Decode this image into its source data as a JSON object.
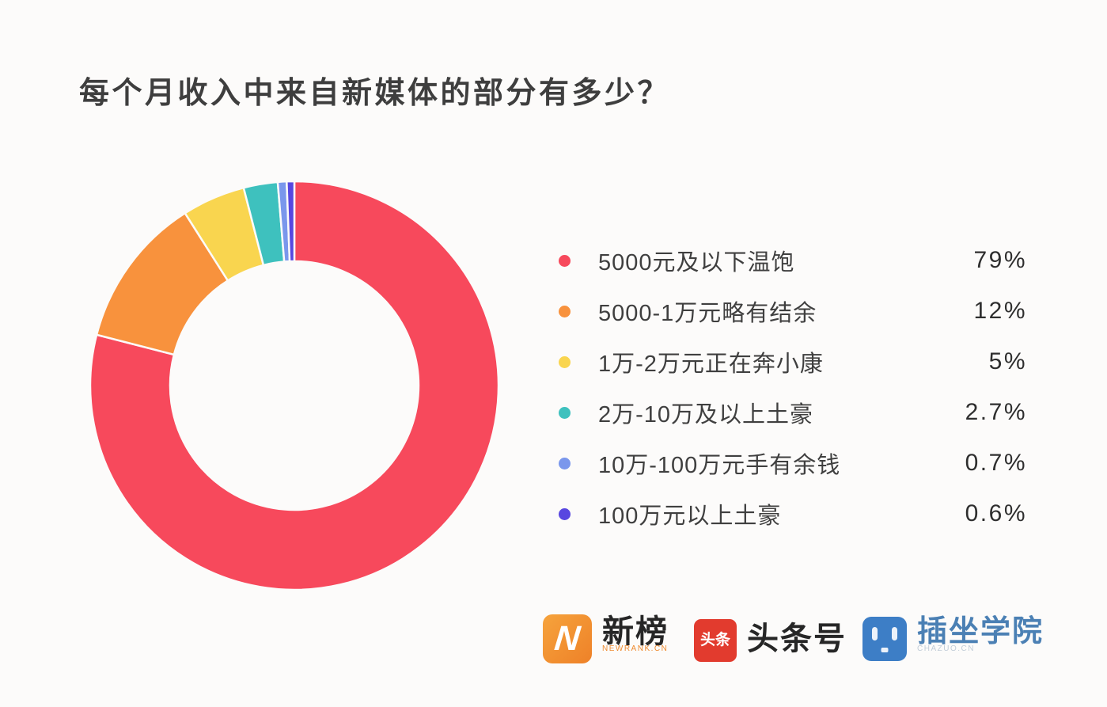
{
  "page": {
    "background": "#FCFBFA"
  },
  "title": "每个月收入中来自新媒体的部分有多少？",
  "chart_data": {
    "type": "pie",
    "variant": "donut",
    "title": "每个月收入中来自新媒体的部分有多少？",
    "categories": [
      "5000元及以下温饱",
      "5000-1万元略有结余",
      "1万-2万元正在奔小康",
      "2万-10万及以上土豪",
      "10万-100万元手有余钱",
      "100万元以上土豪"
    ],
    "values": [
      79,
      12,
      5,
      2.7,
      0.7,
      0.6
    ],
    "value_labels": [
      "79%",
      "12%",
      "5%",
      "2.7%",
      "0.7%",
      "0.6%"
    ],
    "colors": [
      "#F7495C",
      "#F8923D",
      "#F9D54F",
      "#3EC1BE",
      "#7A97EC",
      "#5847E0"
    ],
    "start_angle_deg": 0,
    "direction": "clockwise",
    "inner_radius_ratio": 0.61,
    "separator_color": "#FCFBFA",
    "legend_position": "right",
    "grid": false
  },
  "footer": {
    "logos": [
      {
        "name": "newrank",
        "mark": "N",
        "label": "新榜",
        "sublabel": "NEWRANK.CN",
        "mark_color": "#F0862F"
      },
      {
        "name": "toutiao",
        "mark": "头条",
        "label": "头条号",
        "mark_color": "#E23B2E"
      },
      {
        "name": "chazuo-college",
        "mark": "robot-face",
        "label": "插坐学院",
        "sublabel": "CHAZUO.CN",
        "mark_color": "#3D7EC6"
      }
    ]
  }
}
